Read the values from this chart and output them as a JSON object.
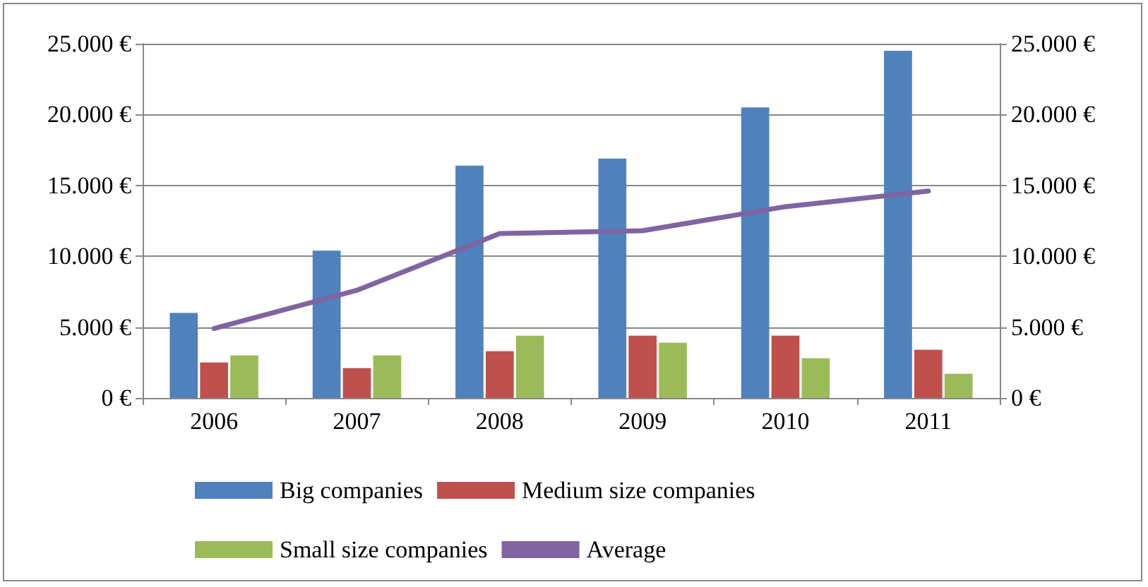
{
  "chart_data": {
    "type": "bar",
    "categories": [
      "2006",
      "2007",
      "2008",
      "2009",
      "2010",
      "2011"
    ],
    "series": [
      {
        "name": "Big companies",
        "color": "#4f81bd",
        "values": [
          6000,
          10400,
          16400,
          16900,
          20500,
          24500
        ]
      },
      {
        "name": "Medium size companies",
        "color": "#c0504d",
        "values": [
          2500,
          2100,
          3300,
          4400,
          4400,
          3400
        ]
      },
      {
        "name": "Small size companies",
        "color": "#9bbb59",
        "values": [
          3000,
          3000,
          4400,
          3900,
          2800,
          1700
        ]
      },
      {
        "name": "Average",
        "type": "line",
        "marker": "none",
        "color": "#8064a2",
        "values": [
          4900,
          7600,
          11600,
          11800,
          13500,
          14600
        ]
      }
    ],
    "ylim": [
      0,
      25000
    ],
    "yticks": [
      {
        "value": 0,
        "label": "0 €"
      },
      {
        "value": 5000,
        "label": "5.000 €"
      },
      {
        "value": 10000,
        "label": "10.000 €"
      },
      {
        "value": 15000,
        "label": "15.000 €"
      },
      {
        "value": 20000,
        "label": "20.000 €"
      },
      {
        "value": 25000,
        "label": "25.000 €"
      }
    ],
    "y2lim": [
      0,
      25000
    ],
    "y2ticks": [
      {
        "value": 0,
        "label": "0 €"
      },
      {
        "value": 5000,
        "label": "5.000 €"
      },
      {
        "value": 10000,
        "label": "10.000 €"
      },
      {
        "value": 15000,
        "label": "15.000 €"
      },
      {
        "value": 20000,
        "label": "20.000 €"
      },
      {
        "value": 25000,
        "label": "25.000 €"
      }
    ],
    "grid": "y",
    "legend": "bottom"
  }
}
